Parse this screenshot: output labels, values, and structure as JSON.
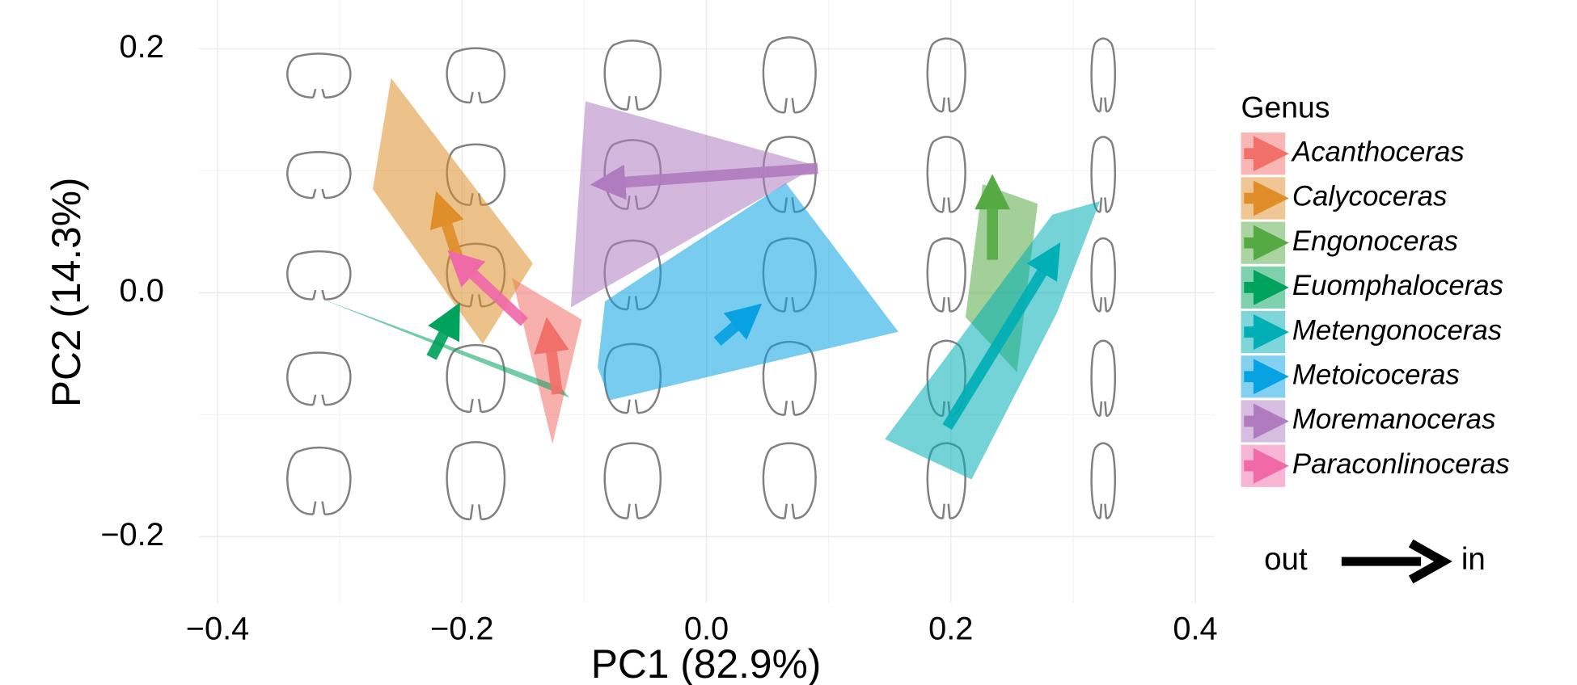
{
  "chart_data": {
    "type": "hull-arrow",
    "x_label": "PC1 (82.9%)",
    "y_label": "PC2 (14.3%)",
    "legend_title": "Genus",
    "legend_position": "right",
    "annotation": {
      "from": "out",
      "to": "in"
    },
    "grid": true,
    "xlim": [
      -0.415,
      0.416
    ],
    "ylim": [
      -0.254,
      0.24
    ],
    "xticks": [
      {
        "value": -0.4,
        "label": "−0.4"
      },
      {
        "value": -0.2,
        "label": "−0.2"
      },
      {
        "value": 0,
        "label": "0.0"
      },
      {
        "value": 0.2,
        "label": "0.2"
      },
      {
        "value": 0.4,
        "label": "0.4"
      }
    ],
    "yticks": [
      {
        "value": -0.2,
        "label": "−0.2"
      },
      {
        "value": 0,
        "label": "0.0"
      },
      {
        "value": 0.2,
        "label": "0.2"
      }
    ],
    "minor_xticks": [
      -0.3,
      -0.1,
      0.1,
      0.3
    ],
    "minor_yticks": [
      -0.1,
      0.1
    ],
    "series": [
      {
        "name": "Acanthoceras",
        "color": "#f2706a",
        "hull": {
          "x": [
            -0.159,
            -0.102,
            -0.126
          ],
          "y": [
            0.012,
            -0.022,
            -0.124
          ]
        },
        "arrow": {
          "x": [
            -0.122,
            -0.128
          ],
          "y": [
            -0.083,
            -0.04
          ]
        }
      },
      {
        "name": "Calycoceras",
        "color": "#df8e2a",
        "hull": {
          "x": [
            -0.258,
            -0.273,
            -0.183,
            -0.142
          ],
          "y": [
            0.176,
            0.085,
            -0.042,
            0.024
          ]
        },
        "arrow": {
          "x": [
            -0.202,
            -0.215
          ],
          "y": [
            0.024,
            0.064
          ]
        }
      },
      {
        "name": "Engonoceras",
        "color": "#56aa44",
        "hull": {
          "x": [
            0.226,
            0.271,
            0.254,
            0.212
          ],
          "y": [
            0.089,
            0.073,
            -0.065,
            -0.02
          ]
        },
        "arrow": {
          "x": [
            0.234,
            0.234
          ],
          "y": [
            0.027,
            0.077
          ]
        }
      },
      {
        "name": "Euomphaloceras",
        "color": "#00a35c",
        "hull": {
          "x": [
            -0.315,
            -0.12,
            -0.112
          ],
          "y": [
            -0.005,
            -0.077,
            -0.086
          ]
        },
        "arrow": {
          "x": [
            -0.225,
            -0.211
          ],
          "y": [
            -0.053,
            -0.026
          ]
        }
      },
      {
        "name": "Metengonoceras",
        "color": "#00aeb5",
        "hull": {
          "x": [
            0.146,
            0.217,
            0.287,
            0.322,
            0.283
          ],
          "y": [
            -0.12,
            -0.153,
            -0.016,
            0.075,
            0.064
          ]
        },
        "arrow": {
          "x": [
            0.197,
            0.279
          ],
          "y": [
            -0.11,
            0.024
          ]
        }
      },
      {
        "name": "Metoicoceras",
        "color": "#07a2e2",
        "hull": {
          "x": [
            -0.083,
            0.065,
            0.157,
            -0.079,
            -0.089
          ],
          "y": [
            -0.007,
            0.09,
            -0.032,
            -0.088,
            -0.061
          ]
        },
        "arrow": {
          "x": [
            0.009,
            0.03
          ],
          "y": [
            -0.04,
            -0.022
          ]
        }
      },
      {
        "name": "Moremanoceras",
        "color": "#b07cbf",
        "hull": {
          "x": [
            -0.099,
            0.091,
            -0.111
          ],
          "y": [
            0.157,
            0.104,
            -0.012
          ]
        },
        "arrow": {
          "x": [
            0.091,
            -0.075
          ],
          "y": [
            0.102,
            0.09
          ]
        }
      },
      {
        "name": "Paraconlinoceras",
        "color": "#f06aa8",
        "hull": {
          "x": [],
          "y": []
        },
        "arrow": {
          "x": [
            -0.149,
            -0.197
          ],
          "y": [
            -0.024,
            0.021
          ]
        }
      }
    ]
  }
}
